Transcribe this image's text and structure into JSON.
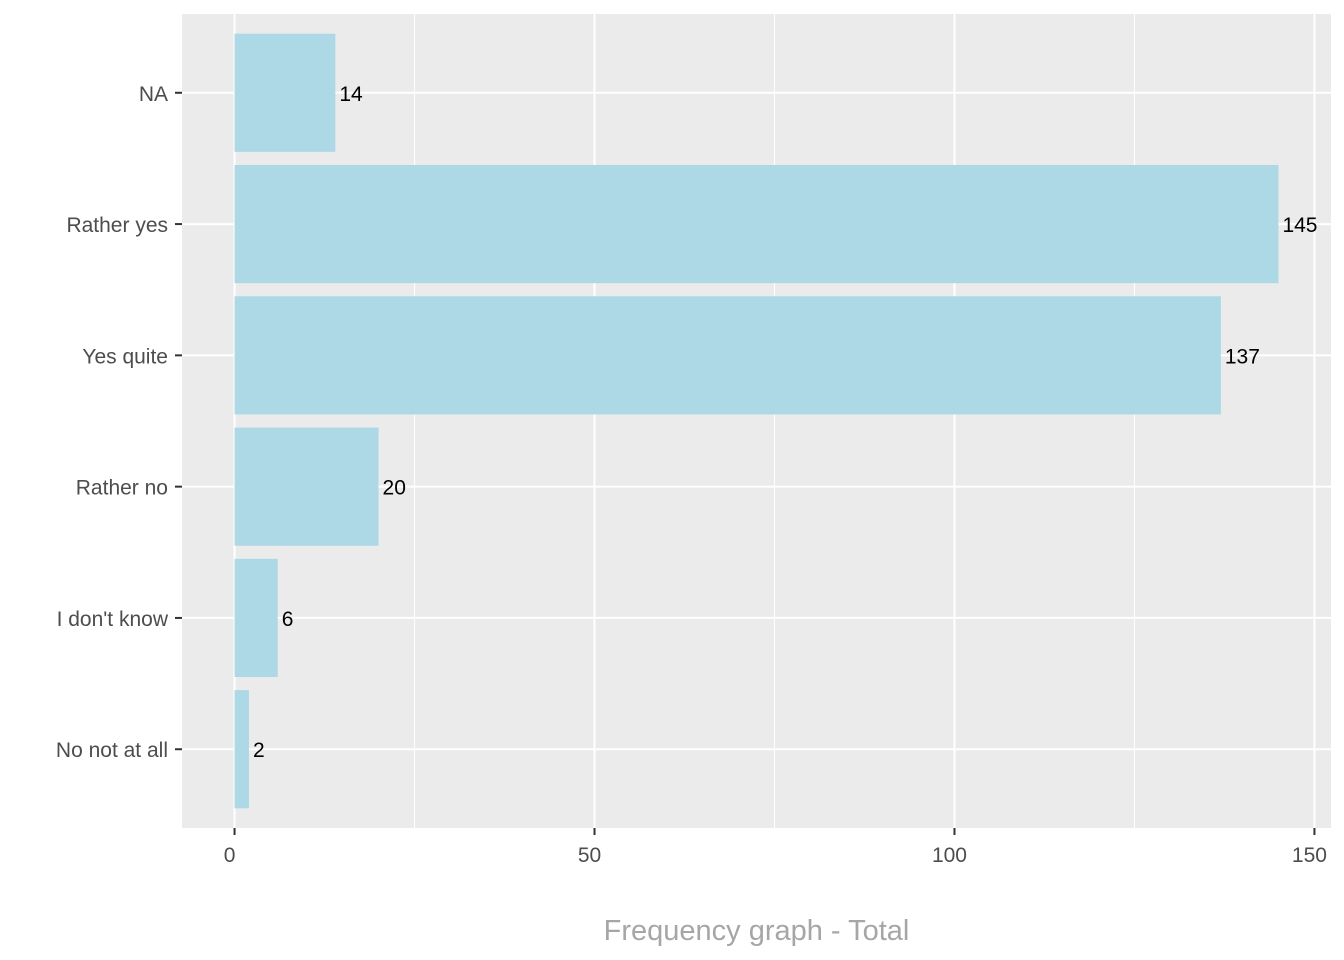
{
  "chart_data": {
    "type": "bar",
    "orientation": "horizontal",
    "categories": [
      "NA",
      "Rather yes",
      "Yes quite",
      "Rather no",
      "I don't know",
      "No not at all"
    ],
    "values": [
      14,
      145,
      137,
      20,
      6,
      2
    ],
    "data_labels": [
      "14",
      "145",
      "137",
      "20",
      "6",
      "2"
    ],
    "xlabel": "Frequency graph - Total",
    "ylabel": "",
    "xlim": [
      -7.3,
      152.3
    ],
    "x_ticks": [
      0,
      50,
      100,
      150
    ],
    "x_tick_labels": [
      "0",
      "50",
      "100",
      "150"
    ],
    "grid": true,
    "legend": "none",
    "colors": {
      "bar": "#add8e6",
      "panel": "#ebebeb",
      "grid": "#ffffff",
      "tick_text": "#4d4d4d",
      "axis_title": "#a6a6a6",
      "data_label": "#000000"
    }
  }
}
